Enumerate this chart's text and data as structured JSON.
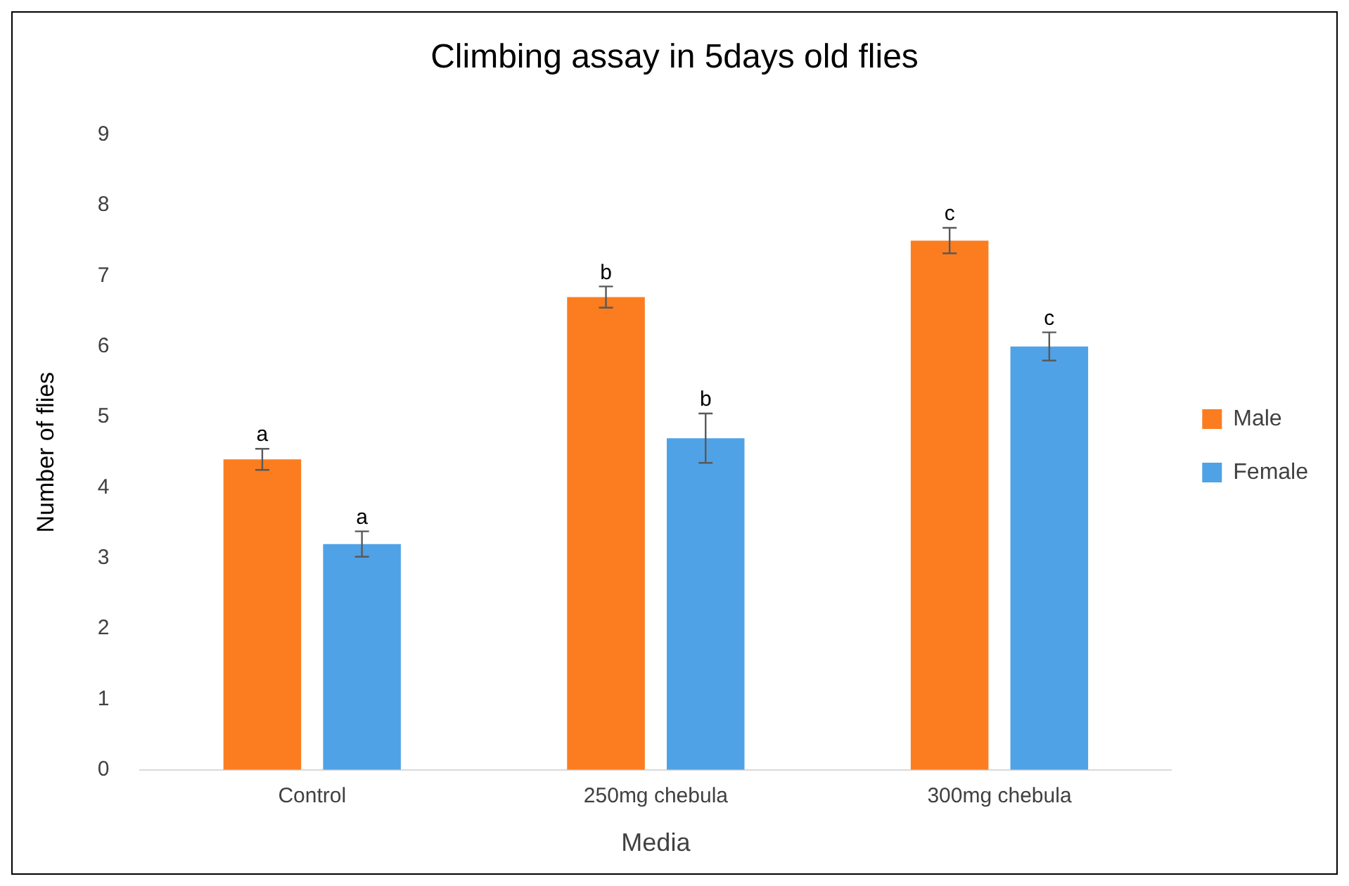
{
  "chart_data": {
    "type": "bar",
    "title": "Climbing assay in 5days old flies",
    "xlabel": "Media",
    "ylabel": "Number of flies",
    "categories": [
      "Control",
      "250mg chebula",
      "300mg chebula"
    ],
    "series": [
      {
        "name": "Male",
        "color": "#fb7d1f",
        "values": [
          4.4,
          6.7,
          7.5
        ],
        "errors": [
          0.15,
          0.15,
          0.18
        ]
      },
      {
        "name": "Female",
        "color": "#50a2e6",
        "values": [
          3.2,
          4.7,
          6.0
        ],
        "errors": [
          0.18,
          0.35,
          0.2
        ]
      }
    ],
    "ylim": [
      0,
      9
    ],
    "yticks": [
      0,
      1,
      2,
      3,
      4,
      5,
      6,
      7,
      8,
      9
    ],
    "grid": false,
    "legend": "right",
    "annotations": [
      "a",
      "a",
      "b",
      "b",
      "c",
      "c"
    ]
  }
}
